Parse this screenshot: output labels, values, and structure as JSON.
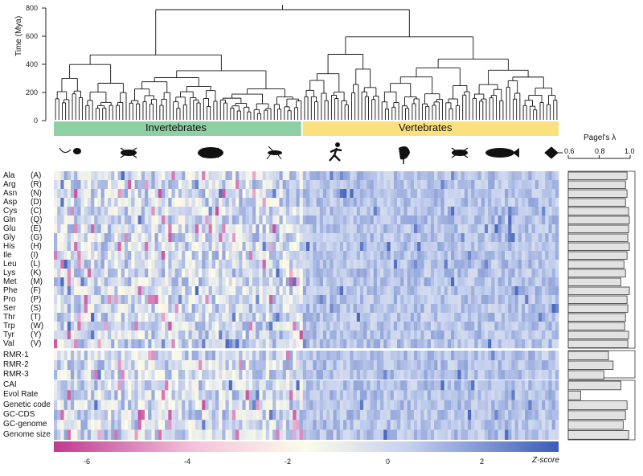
{
  "chart_data": {
    "type": "heatmap",
    "time_axis": {
      "label": "Time (Mya)",
      "ticks": [
        0,
        200,
        400,
        600,
        800
      ],
      "ylim": [
        0,
        850
      ]
    },
    "groups": [
      {
        "name": "Invertebrates",
        "color": "#8fcfa4"
      },
      {
        "name": "Vertebrates",
        "color": "#fbe07f"
      }
    ],
    "silhouettes": [
      "worm-snail",
      "scorpion",
      "beetle",
      "mosquito",
      "runner",
      "bird",
      "frog",
      "fish",
      "stingray"
    ],
    "amino_acid_rows": [
      {
        "name": "Ala",
        "code": "(A)",
        "lambda": 0.98
      },
      {
        "name": "Arg",
        "code": "(R)",
        "lambda": 0.97
      },
      {
        "name": "Asn",
        "code": "(N)",
        "lambda": 0.98
      },
      {
        "name": "Asp",
        "code": "(D)",
        "lambda": 0.97
      },
      {
        "name": "Cys",
        "code": "(C)",
        "lambda": 0.99
      },
      {
        "name": "Gln",
        "code": "(Q)",
        "lambda": 0.995
      },
      {
        "name": "Glu",
        "code": "(E)",
        "lambda": 0.99
      },
      {
        "name": "Gly",
        "code": "(G)",
        "lambda": 0.985
      },
      {
        "name": "His",
        "code": "(H)",
        "lambda": 0.995
      },
      {
        "name": "Ile",
        "code": "(I)",
        "lambda": 0.98
      },
      {
        "name": "Leu",
        "code": "(L)",
        "lambda": 0.96
      },
      {
        "name": "Lys",
        "code": "(K)",
        "lambda": 0.97
      },
      {
        "name": "Met",
        "code": "(M)",
        "lambda": 0.94
      },
      {
        "name": "Phe",
        "code": "(F)",
        "lambda": 0.995
      },
      {
        "name": "Pro",
        "code": "(P)",
        "lambda": 0.98
      },
      {
        "name": "Ser",
        "code": "(S)",
        "lambda": 0.985
      },
      {
        "name": "Thr",
        "code": "(T)",
        "lambda": 0.97
      },
      {
        "name": "Trp",
        "code": "(W)",
        "lambda": 0.965
      },
      {
        "name": "Tyr",
        "code": "(Y)",
        "lambda": 0.99
      },
      {
        "name": "Val",
        "code": "(V)",
        "lambda": 0.985
      }
    ],
    "rmr_rows": [
      {
        "name": "RMR-1",
        "lambda": 0.86
      },
      {
        "name": "RMR-2",
        "lambda": 0.89
      },
      {
        "name": "RMR-3",
        "lambda": 0.83
      }
    ],
    "trait_rows": [
      {
        "name": "CAI",
        "lambda": 0.94
      },
      {
        "name": "Evol Rate",
        "lambda": 0.68
      },
      {
        "name": "Genetic code",
        "lambda": 0.98
      },
      {
        "name": "GC-CDS",
        "lambda": 0.97
      },
      {
        "name": "GC-genome",
        "lambda": 0.955
      },
      {
        "name": "Genome size",
        "lambda": 0.99
      }
    ],
    "lambda_axis": {
      "label": "Pagel's λ",
      "ticks": [
        "0.6",
        "0.8",
        "1.0"
      ],
      "range": [
        0.6,
        1.0
      ]
    },
    "colorbar": {
      "ticks": [
        "-6",
        "-4",
        "-2",
        "0",
        "2"
      ],
      "tick_values": [
        -6,
        -4,
        -2,
        0,
        2
      ],
      "range": [
        -7,
        3.1
      ],
      "label": "Z-score",
      "colors": [
        "#c0398f",
        "#fbe8ee",
        "#fbfbe9",
        "#b7c5e8",
        "#3b5cb8"
      ]
    }
  }
}
